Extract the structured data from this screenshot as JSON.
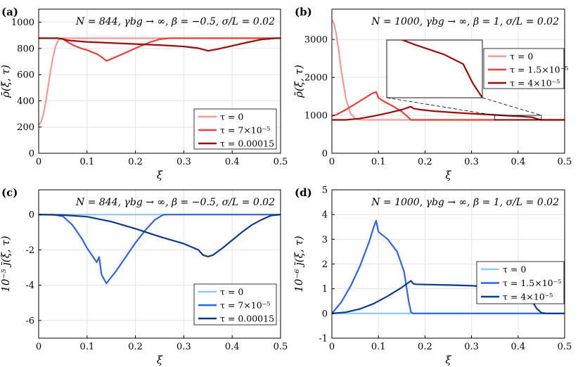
{
  "chart_data": [
    {
      "panel": "(a)",
      "type": "line",
      "title": "N = 844, γbg → ∞, β = −0.5, σ/L = 0.02",
      "xlabel": "ξ",
      "ylabel": "ρ̄(ξ, τ)",
      "xlim": [
        0,
        0.5
      ],
      "ylim": [
        0,
        1100
      ],
      "xticks": [
        0,
        0.1,
        0.2,
        0.3,
        0.4,
        0.5
      ],
      "yticks": [
        0,
        200,
        400,
        600,
        800,
        1000
      ],
      "ytick_labels": [
        "0",
        "200",
        "400",
        "600",
        "800",
        "1000"
      ],
      "grid": true,
      "legend_position": "bottom-right",
      "series": [
        {
          "name": "τ = 0",
          "color": "#f59898",
          "x": [
            0,
            0.005,
            0.01,
            0.015,
            0.02,
            0.025,
            0.03,
            0.035,
            0.04,
            0.045,
            0.05,
            0.06,
            0.1,
            0.2,
            0.3,
            0.4,
            0.5
          ],
          "y": [
            215,
            240,
            300,
            400,
            520,
            640,
            740,
            815,
            860,
            875,
            878,
            878,
            878,
            878,
            878,
            878,
            878
          ]
        },
        {
          "name": "τ = 7×10⁻⁵",
          "color": "#e8403a",
          "x": [
            0,
            0.04,
            0.05,
            0.06,
            0.07,
            0.08,
            0.09,
            0.1,
            0.11,
            0.12,
            0.13,
            0.14,
            0.15,
            0.17,
            0.19,
            0.21,
            0.23,
            0.25,
            0.27,
            0.3,
            0.4,
            0.5
          ],
          "y": [
            878,
            878,
            872,
            848,
            828,
            812,
            798,
            788,
            772,
            758,
            735,
            705,
            720,
            752,
            785,
            818,
            848,
            870,
            878,
            878,
            878,
            878
          ]
        },
        {
          "name": "τ = 0.00015",
          "color": "#9c0c0c",
          "x": [
            0,
            0.04,
            0.05,
            0.06,
            0.08,
            0.1,
            0.15,
            0.2,
            0.25,
            0.3,
            0.33,
            0.35,
            0.37,
            0.4,
            0.43,
            0.46,
            0.49,
            0.5
          ],
          "y": [
            878,
            878,
            872,
            862,
            856,
            850,
            842,
            834,
            826,
            815,
            802,
            782,
            795,
            820,
            845,
            868,
            878,
            878
          ]
        }
      ]
    },
    {
      "panel": "(b)",
      "type": "line",
      "title": "N = 1000, γbg → ∞, β = 1, σ/L = 0.02",
      "xlabel": "ξ",
      "ylabel": "ρ̄(ξ, τ)",
      "xlim": [
        0,
        0.5
      ],
      "ylim": [
        0,
        3800
      ],
      "xticks": [
        0,
        0.1,
        0.2,
        0.3,
        0.4,
        0.5
      ],
      "yticks": [
        0,
        1000,
        2000,
        3000
      ],
      "ytick_labels": [
        "0",
        "1000",
        "2000",
        "3000"
      ],
      "grid": true,
      "legend_position": "right",
      "inset": {
        "xlim": [
          0.35,
          0.45
        ],
        "ylim": [
          880,
          1000
        ]
      },
      "series": [
        {
          "name": "τ = 0",
          "color": "#f59898",
          "x": [
            0,
            0.005,
            0.01,
            0.015,
            0.02,
            0.03,
            0.04,
            0.05,
            0.06,
            0.08,
            0.1,
            0.2,
            0.3,
            0.4,
            0.5
          ],
          "y": [
            3520,
            3400,
            3100,
            2680,
            2200,
            1450,
            1050,
            920,
            885,
            880,
            880,
            880,
            880,
            880,
            880
          ]
        },
        {
          "name": "τ = 1.5×10⁻⁵",
          "color": "#e8403a",
          "x": [
            0,
            0.01,
            0.03,
            0.05,
            0.07,
            0.085,
            0.095,
            0.1,
            0.11,
            0.13,
            0.15,
            0.165,
            0.17,
            0.2,
            0.3,
            0.4,
            0.5
          ],
          "y": [
            980,
            1020,
            1150,
            1300,
            1450,
            1570,
            1620,
            1460,
            1380,
            1250,
            1100,
            940,
            880,
            880,
            880,
            880,
            880
          ]
        },
        {
          "name": "τ = 4×10⁻⁵",
          "color": "#9c0c0c",
          "x": [
            0,
            0.03,
            0.06,
            0.09,
            0.12,
            0.15,
            0.17,
            0.175,
            0.19,
            0.22,
            0.26,
            0.3,
            0.34,
            0.38,
            0.41,
            0.43,
            0.44,
            0.45,
            0.5
          ],
          "y": [
            880,
            880,
            915,
            980,
            1060,
            1150,
            1230,
            1180,
            1150,
            1110,
            1075,
            1045,
            1020,
            990,
            970,
            950,
            910,
            880,
            880
          ]
        }
      ]
    },
    {
      "panel": "(c)",
      "type": "line",
      "title": "N = 844, γbg → ∞, β = −0.5, σ/L = 0.02",
      "xlabel": "ξ",
      "ylabel": "10⁻⁵ j̄(ξ, τ)",
      "xlim": [
        0,
        0.5
      ],
      "ylim": [
        -7,
        1.4
      ],
      "xticks": [
        0,
        0.1,
        0.2,
        0.3,
        0.4,
        0.5
      ],
      "yticks": [
        -6,
        -4,
        -2,
        0
      ],
      "ytick_labels": [
        "-6",
        "-4",
        "-2",
        "0"
      ],
      "grid": true,
      "legend_position": "bottom-right",
      "series": [
        {
          "name": "τ = 0",
          "color": "#8ec8f5",
          "x": [
            0,
            0.1,
            0.2,
            0.3,
            0.4,
            0.5
          ],
          "y": [
            0,
            0,
            0,
            0,
            0,
            0
          ]
        },
        {
          "name": "τ = 7×10⁻⁵",
          "color": "#2e64e8",
          "x": [
            0,
            0.03,
            0.05,
            0.07,
            0.09,
            0.1,
            0.11,
            0.12,
            0.125,
            0.13,
            0.14,
            0.16,
            0.18,
            0.2,
            0.22,
            0.24,
            0.255,
            0.26,
            0.3,
            0.4,
            0.5
          ],
          "y": [
            0,
            0,
            -0.1,
            -0.6,
            -1.4,
            -1.9,
            -2.3,
            -2.7,
            -2.4,
            -3.4,
            -3.9,
            -3.2,
            -2.4,
            -1.6,
            -0.9,
            -0.3,
            -0.05,
            0,
            0,
            0,
            0
          ]
        },
        {
          "name": "τ = 0.00015",
          "color": "#0d3a8c",
          "x": [
            0,
            0.05,
            0.1,
            0.15,
            0.2,
            0.25,
            0.3,
            0.33,
            0.34,
            0.35,
            0.36,
            0.38,
            0.4,
            0.42,
            0.44,
            0.46,
            0.48,
            0.5
          ],
          "y": [
            0,
            -0.03,
            -0.12,
            -0.4,
            -0.8,
            -1.25,
            -1.65,
            -2.0,
            -2.3,
            -2.38,
            -2.3,
            -1.9,
            -1.45,
            -1.0,
            -0.6,
            -0.3,
            -0.06,
            0
          ]
        }
      ]
    },
    {
      "panel": "(d)",
      "type": "line",
      "title": "N = 1000, γbg → ∞, β = 1, σ/L = 0.02",
      "xlabel": "ξ",
      "ylabel": "10⁻⁶ j̄(ξ, τ)",
      "xlim": [
        0,
        0.5
      ],
      "ylim": [
        -1,
        5
      ],
      "xticks": [
        0,
        0.1,
        0.2,
        0.3,
        0.4,
        0.5
      ],
      "yticks": [
        -1,
        0,
        1,
        2,
        3,
        4,
        5
      ],
      "ytick_labels": [
        "-1",
        "0",
        "1",
        "2",
        "3",
        "4",
        "5"
      ],
      "grid": true,
      "legend_position": "right",
      "series": [
        {
          "name": "τ = 0",
          "color": "#8ec8f5",
          "x": [
            0,
            0.1,
            0.2,
            0.3,
            0.4,
            0.5
          ],
          "y": [
            0,
            0,
            0,
            0,
            0,
            0
          ]
        },
        {
          "name": "τ = 1.5×10⁻⁵",
          "color": "#2e64e8",
          "x": [
            0,
            0.02,
            0.04,
            0.06,
            0.08,
            0.09,
            0.095,
            0.1,
            0.12,
            0.14,
            0.155,
            0.165,
            0.17,
            0.175,
            0.2,
            0.3,
            0.5
          ],
          "y": [
            0,
            0.45,
            1.1,
            1.9,
            2.9,
            3.5,
            3.75,
            3.3,
            3.0,
            2.5,
            1.7,
            0.5,
            0.05,
            0,
            0,
            0,
            0
          ]
        },
        {
          "name": "τ = 4×10⁻⁵",
          "color": "#0d3a8c",
          "x": [
            0,
            0.03,
            0.06,
            0.09,
            0.12,
            0.15,
            0.17,
            0.175,
            0.18,
            0.2,
            0.25,
            0.3,
            0.35,
            0.38,
            0.4,
            0.42,
            0.43,
            0.44,
            0.45,
            0.46,
            0.5
          ],
          "y": [
            0,
            0.05,
            0.18,
            0.4,
            0.7,
            1.05,
            1.32,
            1.2,
            1.18,
            1.17,
            1.15,
            1.12,
            1.05,
            0.95,
            0.85,
            0.65,
            0.5,
            0.2,
            0.03,
            0,
            0
          ]
        }
      ]
    }
  ]
}
